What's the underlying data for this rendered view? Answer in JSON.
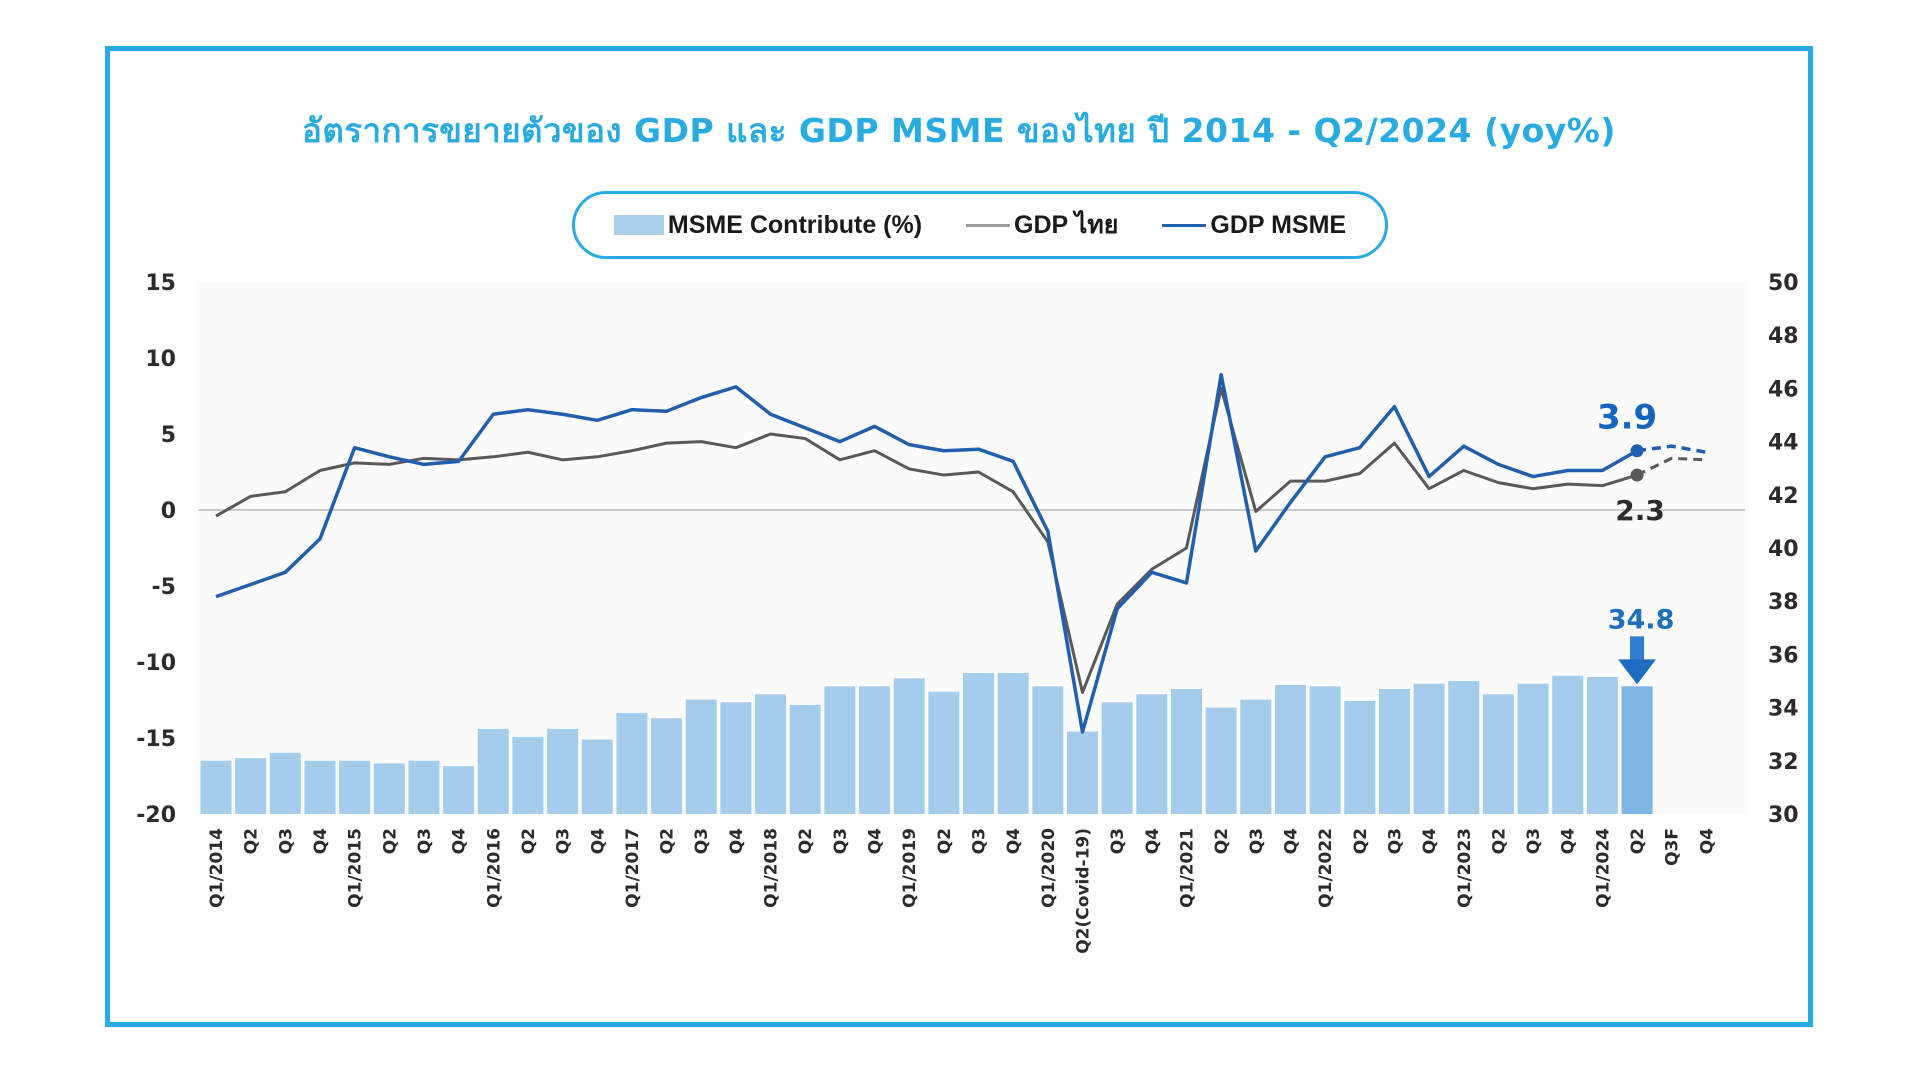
{
  "title": "อัตราการขยายตัวของ GDP และ GDP MSME ของไทย ปี 2014 - Q2/2024 (yoy%)",
  "legend": {
    "items": [
      {
        "label": "MSME Contribute (%)",
        "kind": "bar"
      },
      {
        "label": "GDP ไทย",
        "kind": "line"
      },
      {
        "label": "GDP MSME",
        "kind": "line"
      }
    ]
  },
  "colors": {
    "frame": "#29abe2",
    "bar": "#a4cdec",
    "bar_highlight": "#7db6e3",
    "gdp_thai": "#595959",
    "gdp_msme": "#1f5fae",
    "zero_line": "#c8c8c8",
    "plot_bg": "#fbfbfb"
  },
  "chart_data": {
    "type": "bar+line",
    "title": "อัตราการขยายตัวของ GDP และ GDP MSME ของไทย ปี 2014 - Q2/2024 (yoy%)",
    "categories": [
      "Q1/2014",
      "Q2",
      "Q3",
      "Q4",
      "Q1/2015",
      "Q2",
      "Q3",
      "Q4",
      "Q1/2016",
      "Q2",
      "Q3",
      "Q4",
      "Q1/2017",
      "Q2",
      "Q3",
      "Q4",
      "Q1/2018",
      "Q2",
      "Q3",
      "Q4",
      "Q1/2019",
      "Q2",
      "Q3",
      "Q4",
      "Q1/2020",
      "Q2(Covid-19)",
      "Q3",
      "Q4",
      "Q1/2021",
      "Q2",
      "Q3",
      "Q4",
      "Q1/2022",
      "Q2",
      "Q3",
      "Q4",
      "Q1/2023",
      "Q2",
      "Q3",
      "Q4",
      "Q1/2024",
      "Q2",
      "Q3F",
      "Q4"
    ],
    "left_axis": {
      "label": "",
      "ylim": [
        -20,
        15
      ],
      "ticks": [
        "15",
        "10",
        "5",
        "0",
        "-5",
        "-10",
        "-15",
        "-20"
      ],
      "tick_values": [
        15,
        10,
        5,
        0,
        -5,
        -10,
        -15,
        -20
      ]
    },
    "right_axis": {
      "label": "",
      "ylim": [
        30,
        50
      ],
      "ticks": [
        "50",
        "48",
        "46",
        "44",
        "42",
        "40",
        "38",
        "36",
        "34",
        "32",
        "30"
      ],
      "tick_values": [
        50,
        48,
        46,
        44,
        42,
        40,
        38,
        36,
        34,
        32,
        30
      ]
    },
    "series": [
      {
        "name": "MSME Contribute (%)",
        "type": "bar",
        "axis": "right",
        "values": [
          32.0,
          32.1,
          32.3,
          32.0,
          32.0,
          31.9,
          32.0,
          31.8,
          33.2,
          32.9,
          33.2,
          32.8,
          33.8,
          33.6,
          34.3,
          34.2,
          34.5,
          34.1,
          34.8,
          34.8,
          35.1,
          34.6,
          35.3,
          35.3,
          34.8,
          33.1,
          34.2,
          34.5,
          34.7,
          34.0,
          34.3,
          34.85,
          34.8,
          34.25,
          34.7,
          34.9,
          35.0,
          34.5,
          34.9,
          35.2,
          35.15,
          34.8,
          null,
          null
        ],
        "highlight_index": 41
      },
      {
        "name": "GDP ไทย",
        "type": "line",
        "axis": "left",
        "values": [
          -0.4,
          0.9,
          1.2,
          2.6,
          3.1,
          3.0,
          3.4,
          3.3,
          3.5,
          3.8,
          3.3,
          3.5,
          3.9,
          4.4,
          4.5,
          4.1,
          5.0,
          4.7,
          3.3,
          3.9,
          2.7,
          2.3,
          2.5,
          1.2,
          -2.1,
          -12.0,
          -6.2,
          -3.9,
          -2.5,
          8.0,
          -0.1,
          1.9,
          1.9,
          2.4,
          4.4,
          1.4,
          2.6,
          1.8,
          1.4,
          1.7,
          1.6,
          2.3,
          null,
          null
        ],
        "forecast": {
          "from_index": 41,
          "values": [
            2.3,
            3.4,
            3.3
          ]
        }
      },
      {
        "name": "GDP MSME",
        "type": "line",
        "axis": "left",
        "values": [
          -5.7,
          -4.9,
          -4.1,
          -1.9,
          4.1,
          3.5,
          3.0,
          3.2,
          6.3,
          6.6,
          6.3,
          5.9,
          6.6,
          6.5,
          7.4,
          8.1,
          6.3,
          5.4,
          4.5,
          5.5,
          4.3,
          3.9,
          4.0,
          3.2,
          -1.4,
          -14.6,
          -6.5,
          -4.1,
          -4.8,
          8.9,
          -2.7,
          0.5,
          3.5,
          4.1,
          6.8,
          2.2,
          4.2,
          3.0,
          2.2,
          2.6,
          2.6,
          3.9,
          null,
          null
        ],
        "forecast": {
          "from_index": 41,
          "values": [
            3.9,
            4.2,
            3.8
          ]
        }
      }
    ],
    "annotations": [
      {
        "text": "3.9",
        "series": "GDP MSME",
        "category": "Q2"
      },
      {
        "text": "2.3",
        "series": "GDP ไทย",
        "category": "Q2"
      },
      {
        "text": "34.8",
        "series": "MSME Contribute (%)",
        "category": "Q2"
      }
    ],
    "reference_lines": [
      {
        "axis": "left",
        "value": 0
      }
    ],
    "grid": false,
    "legend_position": "top-center"
  }
}
